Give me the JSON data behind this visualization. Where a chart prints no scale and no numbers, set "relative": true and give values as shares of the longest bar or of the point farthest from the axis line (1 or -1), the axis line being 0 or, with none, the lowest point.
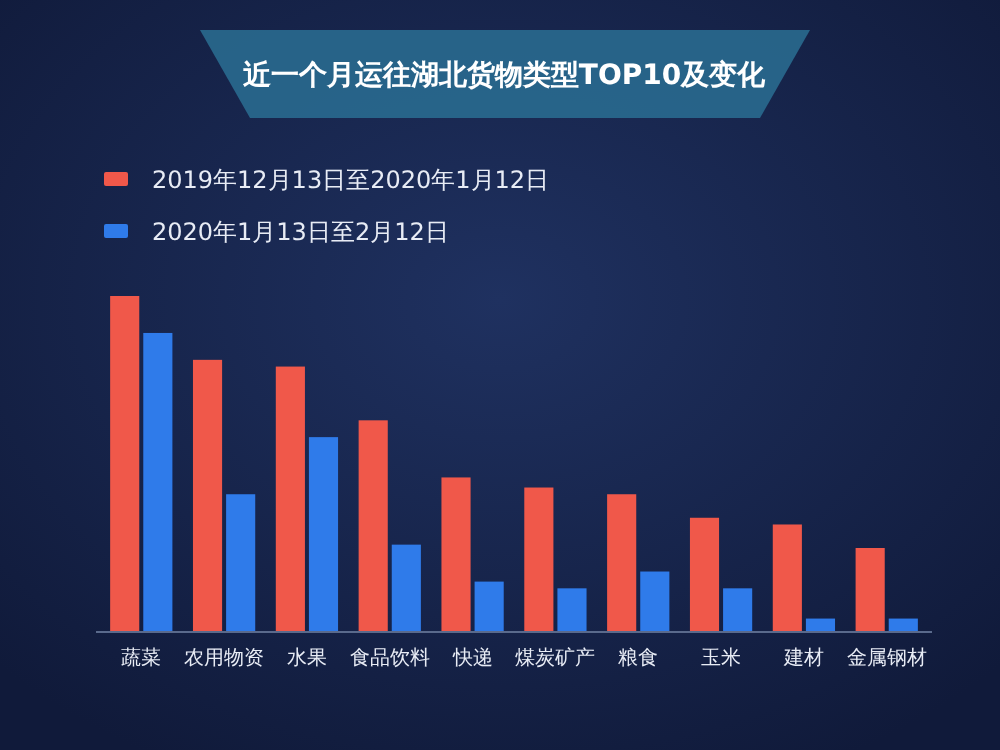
{
  "chart_data": {
    "type": "bar",
    "title": "近一个月运往湖北货物类型TOP10及变化",
    "relative": true,
    "legend": "top left",
    "categories": [
      "蔬菜",
      "农用物资",
      "水果",
      "食品饮料",
      "快递",
      "煤炭矿产",
      "粮食",
      "玉米",
      "建材",
      "金属钢材"
    ],
    "series": [
      {
        "name": "2019年12月13日至2020年1月12日",
        "color": "#f0584a",
        "values": [
          1,
          0.81,
          0.79,
          0.63,
          0.46,
          0.43,
          0.41,
          0.34,
          0.32,
          0.25
        ]
      },
      {
        "name": "2020年1月13日至2月12日",
        "color": "#2f7bea",
        "values": [
          0.89,
          0.41,
          0.58,
          0.26,
          0.15,
          0.13,
          0.18,
          0.13,
          0.04,
          0.04
        ]
      }
    ]
  }
}
